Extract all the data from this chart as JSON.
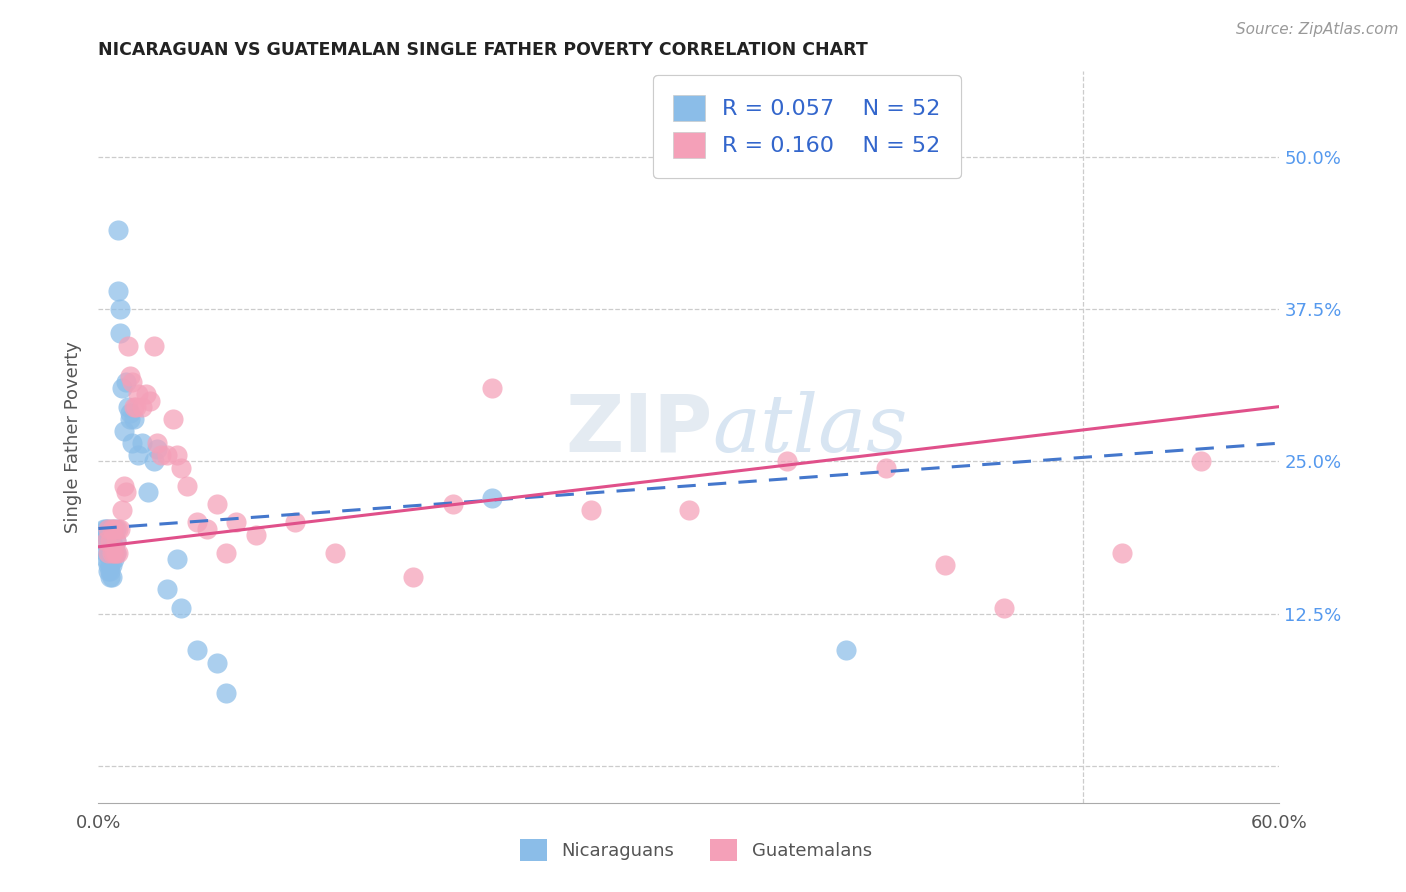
{
  "title": "NICARAGUAN VS GUATEMALAN SINGLE FATHER POVERTY CORRELATION CHART",
  "source": "Source: ZipAtlas.com",
  "ylabel": "Single Father Poverty",
  "watermark_zip": "ZIP",
  "watermark_atlas": "atlas",
  "xlim": [
    0.0,
    0.6
  ],
  "ylim": [
    -0.03,
    0.57
  ],
  "blue_color": "#8bbde8",
  "pink_color": "#f4a0b8",
  "line_blue": "#4477cc",
  "line_pink": "#e0508a",
  "line_blue_dash": "#aabbdd",
  "r_nic": 0.057,
  "n_nic": 52,
  "r_gua": 0.16,
  "n_gua": 52,
  "ytick_positions": [
    0.0,
    0.125,
    0.25,
    0.375,
    0.5
  ],
  "ytick_labels": [
    "",
    "12.5%",
    "25.0%",
    "37.5%",
    "50.0%"
  ],
  "xtick_positions": [
    0.0,
    0.6
  ],
  "xtick_labels": [
    "0.0%",
    "60.0%"
  ],
  "nicaraguan_x": [
    0.003,
    0.003,
    0.004,
    0.004,
    0.004,
    0.004,
    0.005,
    0.005,
    0.005,
    0.005,
    0.005,
    0.006,
    0.006,
    0.006,
    0.006,
    0.006,
    0.007,
    0.007,
    0.007,
    0.007,
    0.007,
    0.008,
    0.008,
    0.008,
    0.009,
    0.009,
    0.009,
    0.01,
    0.01,
    0.011,
    0.011,
    0.012,
    0.013,
    0.014,
    0.015,
    0.016,
    0.016,
    0.017,
    0.018,
    0.02,
    0.022,
    0.025,
    0.028,
    0.03,
    0.035,
    0.04,
    0.042,
    0.05,
    0.06,
    0.065,
    0.2,
    0.38
  ],
  "nicaraguan_y": [
    0.195,
    0.185,
    0.195,
    0.19,
    0.175,
    0.17,
    0.195,
    0.185,
    0.175,
    0.165,
    0.16,
    0.185,
    0.175,
    0.165,
    0.16,
    0.155,
    0.195,
    0.185,
    0.175,
    0.165,
    0.155,
    0.18,
    0.175,
    0.17,
    0.195,
    0.185,
    0.175,
    0.44,
    0.39,
    0.375,
    0.355,
    0.31,
    0.275,
    0.315,
    0.295,
    0.29,
    0.285,
    0.265,
    0.285,
    0.255,
    0.265,
    0.225,
    0.25,
    0.26,
    0.145,
    0.17,
    0.13,
    0.095,
    0.085,
    0.06,
    0.22,
    0.095
  ],
  "guatemalan_x": [
    0.004,
    0.005,
    0.005,
    0.006,
    0.007,
    0.007,
    0.008,
    0.008,
    0.009,
    0.009,
    0.01,
    0.01,
    0.011,
    0.012,
    0.013,
    0.014,
    0.015,
    0.016,
    0.017,
    0.018,
    0.019,
    0.02,
    0.022,
    0.024,
    0.026,
    0.028,
    0.03,
    0.032,
    0.035,
    0.038,
    0.04,
    0.042,
    0.045,
    0.05,
    0.055,
    0.06,
    0.065,
    0.07,
    0.08,
    0.1,
    0.12,
    0.16,
    0.18,
    0.2,
    0.25,
    0.3,
    0.35,
    0.4,
    0.43,
    0.46,
    0.52,
    0.56
  ],
  "guatemalan_y": [
    0.185,
    0.195,
    0.175,
    0.185,
    0.195,
    0.175,
    0.195,
    0.175,
    0.185,
    0.175,
    0.195,
    0.175,
    0.195,
    0.21,
    0.23,
    0.225,
    0.345,
    0.32,
    0.315,
    0.295,
    0.295,
    0.305,
    0.295,
    0.305,
    0.3,
    0.345,
    0.265,
    0.255,
    0.255,
    0.285,
    0.255,
    0.245,
    0.23,
    0.2,
    0.195,
    0.215,
    0.175,
    0.2,
    0.19,
    0.2,
    0.175,
    0.155,
    0.215,
    0.31,
    0.21,
    0.21,
    0.25,
    0.245,
    0.165,
    0.13,
    0.175,
    0.25
  ]
}
